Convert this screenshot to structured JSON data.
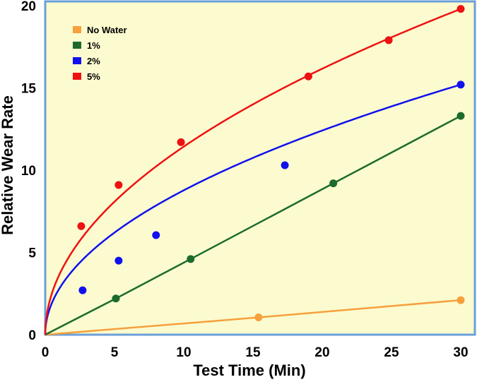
{
  "chart_data": {
    "type": "line",
    "title": "",
    "xlabel": "Test Time (Min)",
    "ylabel": "Relative Wear Rate",
    "xlim": [
      0,
      30
    ],
    "ylim": [
      0,
      20
    ],
    "xticks": [
      0,
      5,
      10,
      15,
      20,
      25,
      30
    ],
    "yticks": [
      0,
      5,
      10,
      15,
      20
    ],
    "grid": false,
    "legend_position": "top-left",
    "colors": {
      "plot_background": "#fcfbcf",
      "frame": "#6a9fd8"
    },
    "series": [
      {
        "name": "No Water",
        "color": "#f7a03c",
        "curve": "linear",
        "points": [
          [
            0,
            0
          ],
          [
            15.4,
            1.05
          ],
          [
            30,
            2.1
          ]
        ]
      },
      {
        "name": "1%",
        "color": "#1b6b2c",
        "curve": "linear",
        "points": [
          [
            0,
            0
          ],
          [
            5.1,
            2.2
          ],
          [
            10.5,
            4.6
          ],
          [
            20.8,
            9.2
          ],
          [
            30,
            13.3
          ]
        ]
      },
      {
        "name": "2%",
        "color": "#1010ee",
        "curve": "sqrt",
        "points": [
          [
            0,
            0
          ],
          [
            2.7,
            2.7
          ],
          [
            5.3,
            4.5
          ],
          [
            8,
            6.05
          ],
          [
            17.3,
            10.3
          ],
          [
            30,
            15.2
          ]
        ]
      },
      {
        "name": "5%",
        "color": "#ee1111",
        "curve": "sqrt",
        "points": [
          [
            0,
            0
          ],
          [
            2.6,
            6.6
          ],
          [
            5.3,
            9.1
          ],
          [
            9.8,
            11.7
          ],
          [
            19,
            15.7
          ],
          [
            24.8,
            17.9
          ],
          [
            30,
            19.8
          ]
        ]
      }
    ]
  }
}
